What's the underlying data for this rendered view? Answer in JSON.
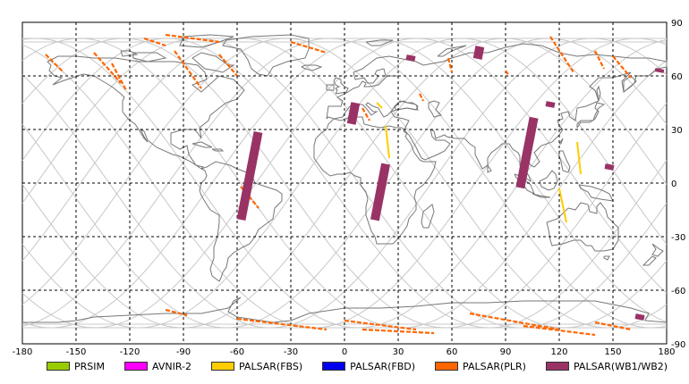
{
  "x_ticks": [
    "-180",
    "-150",
    "-120",
    "-90",
    "-60",
    "-30",
    "0",
    "30",
    "60",
    "90",
    "120",
    "150",
    "180"
  ],
  "y_ticks": [
    "90",
    "60",
    "30",
    "0",
    "-30",
    "-60",
    "-90"
  ],
  "legend": [
    {
      "label": "PRSIM",
      "color": "#99cc00"
    },
    {
      "label": "AVNIR-2",
      "color": "#ff00ff"
    },
    {
      "label": "PALSAR(FBS)",
      "color": "#ffcc00"
    },
    {
      "label": "PALSAR(FBD)",
      "color": "#0000ee"
    },
    {
      "label": "PALSAR(PLR)",
      "color": "#ff6600"
    },
    {
      "label": "PALSAR(WB1/WB2)",
      "color": "#993366"
    }
  ],
  "colors": {
    "plr": "#ff6600",
    "wb": "#993366",
    "fbs": "#ffcc00",
    "coast": "#777777",
    "orbit": "#c8c8c8"
  },
  "map_features": {
    "wb_swaths": [
      {
        "lon": -53,
        "lat": 4,
        "len": 50
      },
      {
        "lon": 20,
        "lat": -5,
        "len": 32
      },
      {
        "lon": 102,
        "lat": 17,
        "len": 40
      },
      {
        "lon": 5,
        "lat": 39,
        "len": 12
      },
      {
        "lon": 75,
        "lat": 73,
        "len": 7
      },
      {
        "lon": 37,
        "lat": 70,
        "len": 3
      },
      {
        "lon": 115,
        "lat": 44,
        "len": 3
      },
      {
        "lon": 148,
        "lat": 9,
        "len": 3
      },
      {
        "lon": 165,
        "lat": -75,
        "len": 3
      },
      {
        "lon": 176,
        "lat": 63,
        "len": 2
      }
    ],
    "plr_strips": [
      [
        [
          -100,
          83
        ],
        [
          -70,
          79
        ]
      ],
      [
        [
          -30,
          79
        ],
        [
          -10,
          73
        ]
      ],
      [
        [
          -112,
          81
        ],
        [
          -100,
          77
        ]
      ],
      [
        [
          -167,
          72
        ],
        [
          -157,
          62
        ]
      ],
      [
        [
          -130,
          67
        ],
        [
          -122,
          52
        ]
      ],
      [
        [
          -140,
          73
        ],
        [
          -125,
          56
        ]
      ],
      [
        [
          -95,
          74
        ],
        [
          -80,
          53
        ]
      ],
      [
        [
          -70,
          72
        ],
        [
          -60,
          60
        ]
      ],
      [
        [
          115,
          82
        ],
        [
          128,
          62
        ]
      ],
      [
        [
          140,
          74
        ],
        [
          145,
          64
        ]
      ],
      [
        [
          150,
          71
        ],
        [
          160,
          59
        ]
      ],
      [
        [
          90,
          63
        ],
        [
          92,
          60
        ]
      ],
      [
        [
          -58,
          -2
        ],
        [
          -48,
          -14
        ]
      ],
      [
        [
          -100,
          -71
        ],
        [
          -88,
          -74
        ]
      ],
      [
        [
          -60,
          -76
        ],
        [
          -10,
          -82
        ]
      ],
      [
        [
          0,
          -77
        ],
        [
          40,
          -82
        ]
      ],
      [
        [
          70,
          -73
        ],
        [
          120,
          -82
        ]
      ],
      [
        [
          100,
          -80
        ],
        [
          140,
          -85
        ]
      ],
      [
        [
          10,
          -82
        ],
        [
          50,
          -84
        ]
      ],
      [
        [
          140,
          -78
        ],
        [
          160,
          -82
        ]
      ],
      [
        [
          10,
          42
        ],
        [
          14,
          35
        ]
      ],
      [
        [
          42,
          50
        ],
        [
          44,
          46
        ]
      ],
      [
        [
          58,
          70
        ],
        [
          60,
          62
        ]
      ]
    ],
    "fbs_strips": [
      [
        [
          23,
          32
        ],
        [
          25,
          14
        ]
      ],
      [
        [
          120,
          -3
        ],
        [
          124,
          -22
        ]
      ],
      [
        [
          130,
          23
        ],
        [
          132,
          5
        ]
      ],
      [
        [
          18,
          45
        ],
        [
          21,
          42
        ]
      ]
    ]
  }
}
